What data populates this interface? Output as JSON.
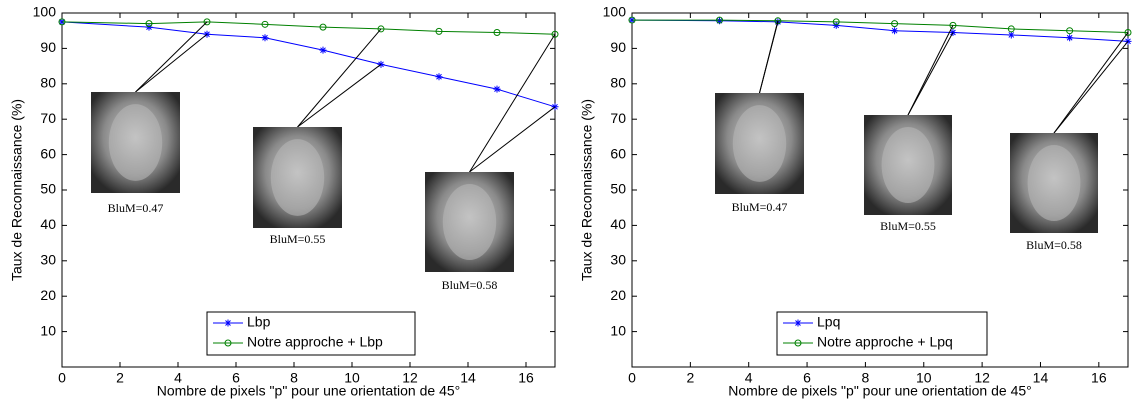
{
  "chart_data": [
    {
      "type": "line",
      "xlabel": "Nombre de pixels \"p\" pour une orientation de 45°",
      "ylabel": "Taux de Reconnaissance (%)",
      "x": [
        0,
        3,
        5,
        7,
        9,
        11,
        13,
        15,
        17
      ],
      "series": [
        {
          "name": "Lbp",
          "color": "#0000ff",
          "marker": "star",
          "values": [
            97.5,
            96,
            94,
            93,
            89.5,
            85.5,
            82,
            78.5,
            73.5
          ]
        },
        {
          "name": "Notre approche + Lbp",
          "color": "#008000",
          "marker": "circle",
          "values": [
            97.5,
            97,
            97.5,
            96.8,
            96,
            95.5,
            94.8,
            94.5,
            94
          ]
        }
      ],
      "xlim": [
        0,
        17
      ],
      "ylim": [
        0,
        100
      ],
      "xticks": [
        0,
        2,
        4,
        6,
        8,
        10,
        12,
        14,
        16
      ],
      "yticks": [
        10,
        20,
        30,
        40,
        50,
        60,
        70,
        80,
        90,
        100
      ],
      "legend": "lower center",
      "annotations": [
        "BluM=0.47",
        "BluM=0.55",
        "BluM=0.58"
      ]
    },
    {
      "type": "line",
      "xlabel": "Nombre de pixels \"p\" pour une orientation de 45°",
      "ylabel": "Taux de Reconnaissance (%)",
      "x": [
        0,
        3,
        5,
        7,
        9,
        11,
        13,
        15,
        17
      ],
      "series": [
        {
          "name": "Lpq",
          "color": "#0000ff",
          "marker": "star",
          "values": [
            98,
            97.8,
            97.5,
            96.5,
            95,
            94.5,
            93.8,
            93,
            92
          ]
        },
        {
          "name": "Notre approche + Lpq",
          "color": "#008000",
          "marker": "circle",
          "values": [
            98,
            98,
            97.8,
            97.5,
            97,
            96.5,
            95.5,
            95,
            94.5
          ]
        }
      ],
      "xlim": [
        0,
        17
      ],
      "ylim": [
        0,
        100
      ],
      "xticks": [
        0,
        2,
        4,
        6,
        8,
        10,
        12,
        14,
        16
      ],
      "yticks": [
        10,
        20,
        30,
        40,
        50,
        60,
        70,
        80,
        90,
        100
      ],
      "legend": "lower center",
      "annotations": [
        "BluM=0.47",
        "BluM=0.55",
        "BluM=0.58"
      ]
    }
  ]
}
